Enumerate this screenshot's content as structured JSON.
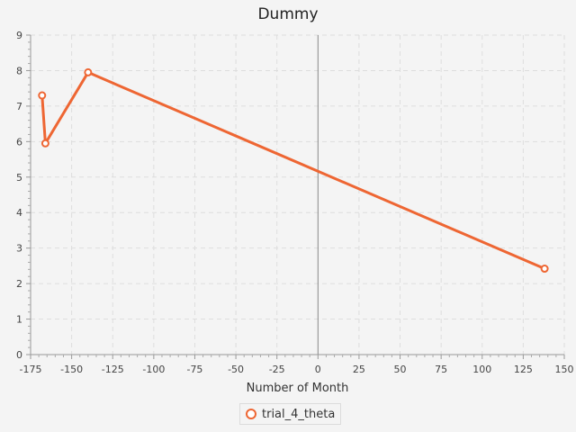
{
  "chart_data": {
    "type": "line",
    "title": "Dummy",
    "xlabel": "Number of Month",
    "ylabel": "",
    "xlim": [
      -175,
      150
    ],
    "ylim": [
      0,
      9
    ],
    "x_ticks": [
      -175,
      -150,
      -125,
      -100,
      -75,
      -50,
      -25,
      0,
      25,
      50,
      75,
      100,
      125,
      150
    ],
    "y_ticks": [
      0,
      1,
      2,
      3,
      4,
      5,
      6,
      7,
      8,
      9
    ],
    "grid": true,
    "legend_position": "bottom-center",
    "series": [
      {
        "name": "trial_4_theta",
        "color": "#ee6633",
        "x": [
          -168,
          -166,
          -140,
          138
        ],
        "y": [
          7.3,
          5.95,
          7.95,
          2.42
        ]
      }
    ]
  }
}
